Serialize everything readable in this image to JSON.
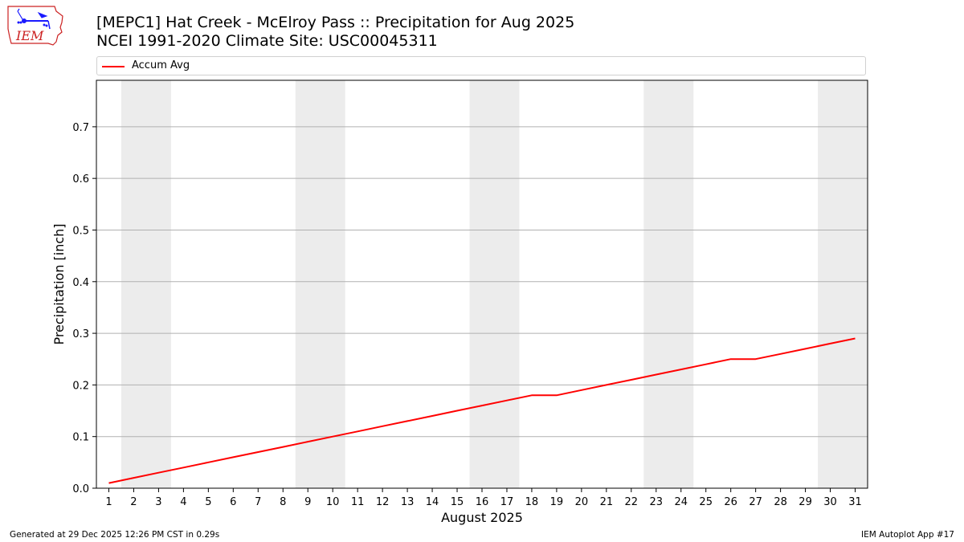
{
  "header": {
    "title_line1": "[MEPC1] Hat Creek - McElroy Pass :: Precipitation for Aug 2025",
    "title_line2": "NCEI 1991-2020 Climate Site: USC00045311",
    "logo_text": "IEM"
  },
  "legend": {
    "label": "Accum Avg"
  },
  "footer": {
    "left": "Generated at 29 Dec 2025 12:26 PM CST in 0.29s",
    "right": "IEM Autoplot App #17"
  },
  "colors": {
    "series": "#ff0000",
    "weekend_band": "#ececec",
    "grid": "#b0b0b0",
    "logo_red": "#cc2222",
    "logo_blue": "#1a1aff"
  },
  "chart_data": {
    "type": "line",
    "title": "[MEPC1] Hat Creek - McElroy Pass :: Precipitation for Aug 2025",
    "subtitle": "NCEI 1991-2020 Climate Site: USC00045311",
    "xlabel": "August 2025",
    "ylabel": "Precipitation [inch]",
    "xlim": [
      0.5,
      31.5
    ],
    "ylim": [
      0,
      0.79
    ],
    "yticks": [
      0.0,
      0.1,
      0.2,
      0.3,
      0.4,
      0.5,
      0.6,
      0.7
    ],
    "ytick_labels": [
      "0.0",
      "0.1",
      "0.2",
      "0.3",
      "0.4",
      "0.5",
      "0.6",
      "0.7"
    ],
    "xticks": [
      1,
      2,
      3,
      4,
      5,
      6,
      7,
      8,
      9,
      10,
      11,
      12,
      13,
      14,
      15,
      16,
      17,
      18,
      19,
      20,
      21,
      22,
      23,
      24,
      25,
      26,
      27,
      28,
      29,
      30,
      31
    ],
    "xtick_labels": [
      "1",
      "2",
      "3",
      "4",
      "5",
      "6",
      "7",
      "8",
      "9",
      "10",
      "11",
      "12",
      "13",
      "14",
      "15",
      "16",
      "17",
      "18",
      "19",
      "20",
      "21",
      "22",
      "23",
      "24",
      "25",
      "26",
      "27",
      "28",
      "29",
      "30",
      "31"
    ],
    "grid": "y",
    "legend_position": "top",
    "weekend_bands": [
      [
        1.5,
        3.5
      ],
      [
        8.5,
        10.5
      ],
      [
        15.5,
        17.5
      ],
      [
        22.5,
        24.5
      ],
      [
        29.5,
        31.5
      ]
    ],
    "series": [
      {
        "name": "Accum Avg",
        "color": "#ff0000",
        "x": [
          1,
          2,
          3,
          4,
          5,
          6,
          7,
          8,
          9,
          10,
          11,
          12,
          13,
          14,
          15,
          16,
          17,
          18,
          19,
          20,
          21,
          22,
          23,
          24,
          25,
          26,
          27,
          28,
          29,
          30,
          31
        ],
        "values": [
          0.01,
          0.02,
          0.03,
          0.04,
          0.05,
          0.06,
          0.07,
          0.08,
          0.09,
          0.1,
          0.11,
          0.12,
          0.13,
          0.14,
          0.15,
          0.16,
          0.17,
          0.18,
          0.18,
          0.19,
          0.2,
          0.21,
          0.22,
          0.23,
          0.24,
          0.25,
          0.25,
          0.26,
          0.27,
          0.28,
          0.29
        ]
      }
    ]
  }
}
